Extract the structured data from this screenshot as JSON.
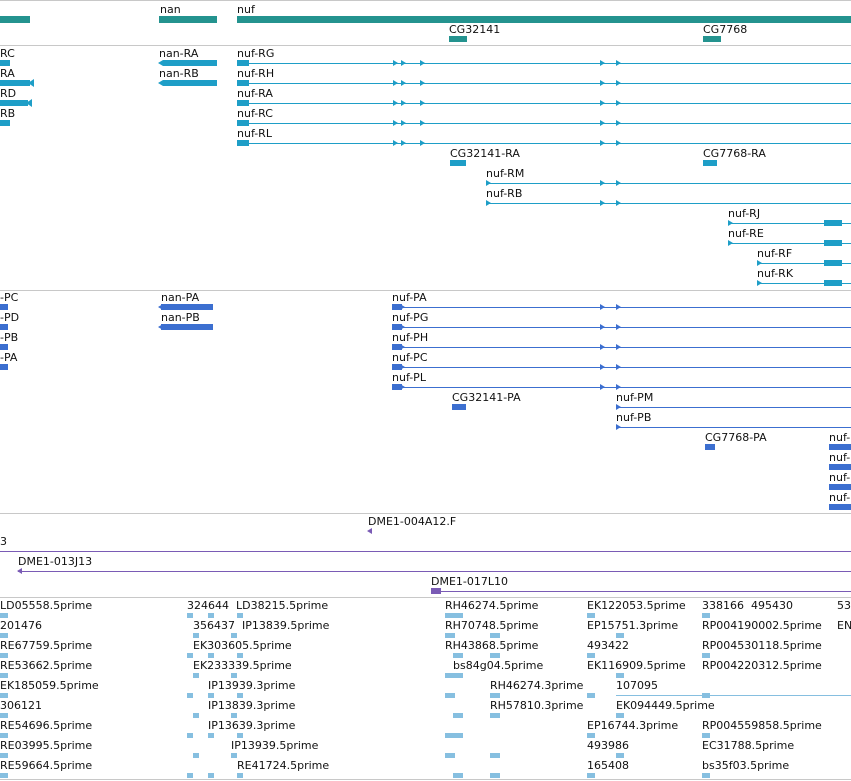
{
  "colors": {
    "gene": "#24938f",
    "transcript": "#1e9ec7",
    "protein": "#3c6fd0",
    "clone": "#7a5bb5",
    "est": "#86bfe0",
    "separator": "#c8c8c8"
  },
  "genes": [
    {
      "label": "nan"
    },
    {
      "label": "nuf"
    },
    {
      "label": "CG32141"
    },
    {
      "label": "CG7768"
    }
  ],
  "transcripts": [
    {
      "label": "RC"
    },
    {
      "label": "RA"
    },
    {
      "label": "RD"
    },
    {
      "label": "RB"
    },
    {
      "label": "nan-RA"
    },
    {
      "label": "nan-RB"
    },
    {
      "label": "nuf-RG"
    },
    {
      "label": "nuf-RH"
    },
    {
      "label": "nuf-RA"
    },
    {
      "label": "nuf-RC"
    },
    {
      "label": "nuf-RL"
    },
    {
      "label": "CG32141-RA"
    },
    {
      "label": "CG7768-RA"
    },
    {
      "label": "nuf-RM"
    },
    {
      "label": "nuf-RB"
    },
    {
      "label": "nuf-RJ"
    },
    {
      "label": "nuf-RE"
    },
    {
      "label": "nuf-RF"
    },
    {
      "label": "nuf-RK"
    }
  ],
  "proteins": [
    {
      "label": "-PC"
    },
    {
      "label": "-PD"
    },
    {
      "label": "-PB"
    },
    {
      "label": "-PA"
    },
    {
      "label": "nan-PA"
    },
    {
      "label": "nan-PB"
    },
    {
      "label": "nuf-PA"
    },
    {
      "label": "nuf-PG"
    },
    {
      "label": "nuf-PH"
    },
    {
      "label": "nuf-PC"
    },
    {
      "label": "nuf-PL"
    },
    {
      "label": "CG32141-PA"
    },
    {
      "label": "nuf-PM"
    },
    {
      "label": "nuf-PB"
    },
    {
      "label": "CG7768-PA"
    },
    {
      "label": "nuf-"
    },
    {
      "label": "nuf-"
    },
    {
      "label": "nuf-"
    },
    {
      "label": "nuf-"
    }
  ],
  "clones": [
    {
      "label": "DME1-004A12.F"
    },
    {
      "label": "3"
    },
    {
      "label": "DME1-013J13"
    },
    {
      "label": "DME1-017L10"
    }
  ],
  "ests": [
    {
      "label": "LD05558.5prime"
    },
    {
      "label": "324644"
    },
    {
      "label": "LD38215.5prime"
    },
    {
      "label": "RH46274.5prime"
    },
    {
      "label": "EK122053.5prime"
    },
    {
      "label": "338166"
    },
    {
      "label": "495430"
    },
    {
      "label": "53"
    },
    {
      "label": "201476"
    },
    {
      "label": "356437"
    },
    {
      "label": "IP13839.5prime"
    },
    {
      "label": "RH70748.5prime"
    },
    {
      "label": "EP15751.3prime"
    },
    {
      "label": "RP004190002.5prime"
    },
    {
      "label": "EN"
    },
    {
      "label": "RE67759.5prime"
    },
    {
      "label": "EK303605.5prime"
    },
    {
      "label": "RH43868.5prime"
    },
    {
      "label": "493422"
    },
    {
      "label": "RP004530118.5prime"
    },
    {
      "label": "RE53662.5prime"
    },
    {
      "label": "EK233339.5prime"
    },
    {
      "label": "bs84g04.5prime"
    },
    {
      "label": "EK116909.5prime"
    },
    {
      "label": "RP004220312.5prime"
    },
    {
      "label": "EK185059.5prime"
    },
    {
      "label": "IP13939.3prime"
    },
    {
      "label": "RH46274.3prime"
    },
    {
      "label": "107095"
    },
    {
      "label": "306121"
    },
    {
      "label": "IP13839.3prime"
    },
    {
      "label": "RH57810.3prime"
    },
    {
      "label": "EK094449.5prime"
    },
    {
      "label": "RE54696.5prime"
    },
    {
      "label": "IP13639.3prime"
    },
    {
      "label": "EP16744.3prime"
    },
    {
      "label": "RP004559858.5prime"
    },
    {
      "label": "RE03995.5prime"
    },
    {
      "label": "IP13939.5prime"
    },
    {
      "label": "493986"
    },
    {
      "label": "EC31788.5prime"
    },
    {
      "label": "RE59664.5prime"
    },
    {
      "label": "RE41724.5prime"
    },
    {
      "label": "165408"
    },
    {
      "label": "bs35f03.5prime"
    }
  ]
}
